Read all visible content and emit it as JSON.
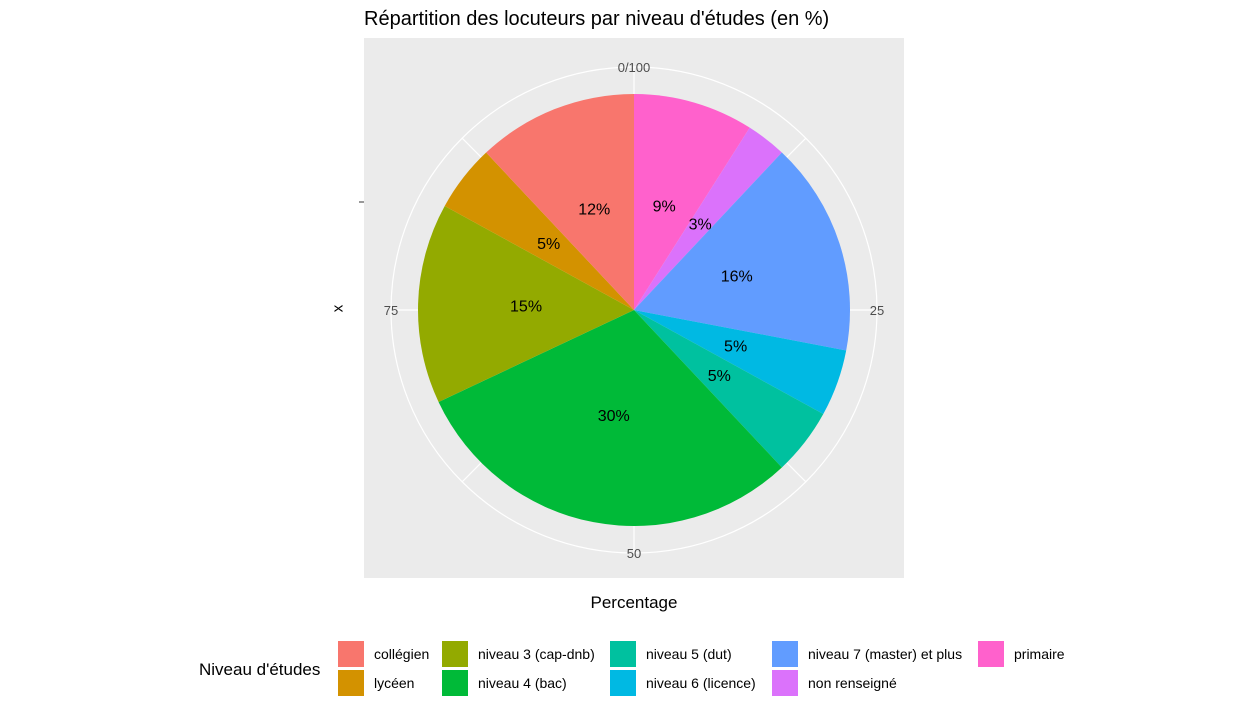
{
  "chart_data": {
    "type": "pie",
    "title": "Répartition des locuteurs par niveau d'études (en %)",
    "xlabel": "Percentage",
    "ylabel": "x",
    "theta_ticks": [
      "0/100",
      "25",
      "50",
      "75"
    ],
    "legend_title": "Niveau d'études",
    "legend_position": "bottom",
    "background": "#EBEBEB",
    "slices": [
      {
        "label": "primaire",
        "value": 9,
        "display": "9%",
        "color": "#FF61CC"
      },
      {
        "label": "non renseigné",
        "value": 3,
        "display": "3%",
        "color": "#DB72FB"
      },
      {
        "label": "niveau 7 (master) et plus",
        "value": 16,
        "display": "16%",
        "color": "#619CFF"
      },
      {
        "label": "niveau 6 (licence)",
        "value": 5,
        "display": "5%",
        "color": "#00B9E3"
      },
      {
        "label": "niveau 5 (dut)",
        "value": 5,
        "display": "5%",
        "color": "#00C19F"
      },
      {
        "label": "niveau 4 (bac)",
        "value": 30,
        "display": "30%",
        "color": "#00BA38"
      },
      {
        "label": "niveau 3 (cap-dnb)",
        "value": 15,
        "display": "15%",
        "color": "#93AA00"
      },
      {
        "label": "lycéen",
        "value": 5,
        "display": "5%",
        "color": "#D39200"
      },
      {
        "label": "collégien",
        "value": 12,
        "display": "12%",
        "color": "#F8766D"
      }
    ],
    "legend": [
      {
        "label": "collégien",
        "color": "#F8766D"
      },
      {
        "label": "lycéen",
        "color": "#D39200"
      },
      {
        "label": "niveau 3 (cap-dnb)",
        "color": "#93AA00"
      },
      {
        "label": "niveau 4 (bac)",
        "color": "#00BA38"
      },
      {
        "label": "niveau 5 (dut)",
        "color": "#00C19F"
      },
      {
        "label": "niveau 6 (licence)",
        "color": "#00B9E3"
      },
      {
        "label": "niveau 7 (master) et plus",
        "color": "#619CFF"
      },
      {
        "label": "non renseigné",
        "color": "#DB72FB"
      },
      {
        "label": "primaire",
        "color": "#FF61CC"
      }
    ]
  }
}
